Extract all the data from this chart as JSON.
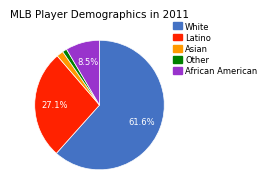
{
  "title": "MLB Player Demographics in 2011",
  "slices": [
    {
      "label": "White",
      "value": 61.6,
      "color": "#4472C4"
    },
    {
      "label": "Latino",
      "value": 27.1,
      "color": "#FF2200"
    },
    {
      "label": "Asian",
      "value": 1.7,
      "color": "#FF9900"
    },
    {
      "label": "Other",
      "value": 1.1,
      "color": "#008000"
    },
    {
      "label": "African American",
      "value": 8.5,
      "color": "#9933CC"
    }
  ],
  "legend_order": [
    "White",
    "Latino",
    "Asian",
    "Other",
    "African American"
  ],
  "background_color": "#FFFFFF",
  "title_fontsize": 7.5,
  "legend_fontsize": 6.0,
  "pct_fontsize": 6.0,
  "startangle": 90
}
